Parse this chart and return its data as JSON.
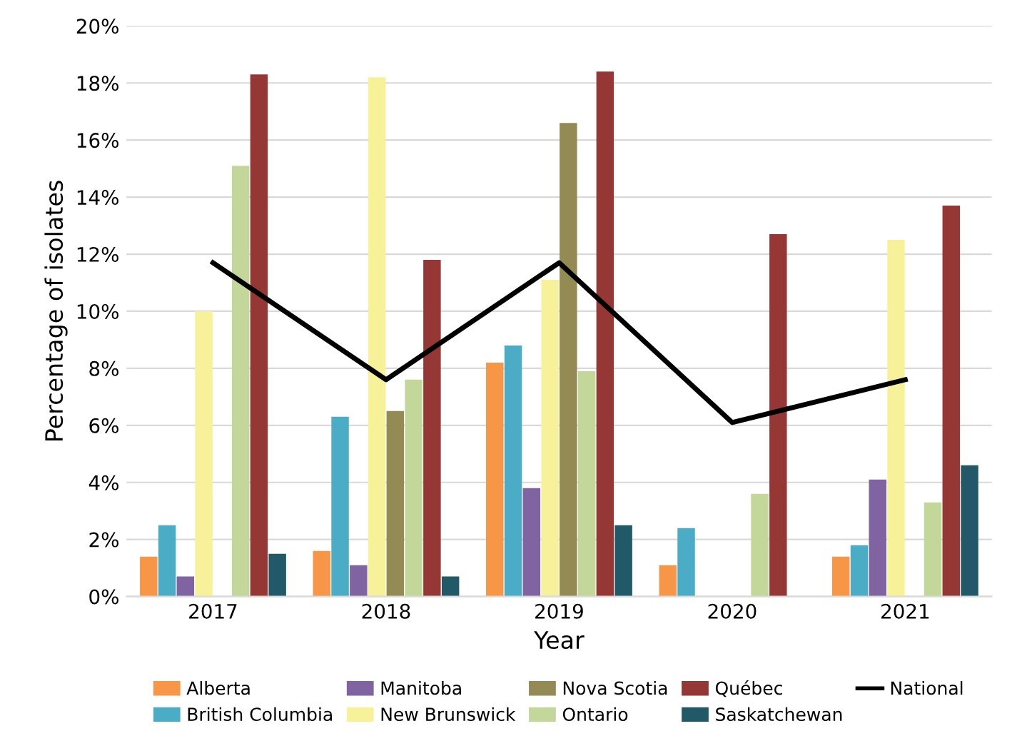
{
  "chart_data": {
    "type": "bar",
    "xlabel": "Year",
    "ylabel": "Percentage of isolates",
    "categories": [
      "2017",
      "2018",
      "2019",
      "2020",
      "2021"
    ],
    "series": [
      {
        "name": "Alberta",
        "color": "#f79646",
        "values": [
          1.4,
          1.6,
          8.2,
          1.1,
          1.4
        ]
      },
      {
        "name": "British Columbia",
        "color": "#4bacc6",
        "values": [
          2.5,
          6.3,
          8.8,
          2.4,
          1.8
        ]
      },
      {
        "name": "Manitoba",
        "color": "#8064a2",
        "values": [
          0.7,
          1.1,
          3.8,
          null,
          4.1
        ]
      },
      {
        "name": "New Brunswick",
        "color": "#f7f19a",
        "values": [
          10.0,
          18.2,
          11.1,
          null,
          12.5
        ]
      },
      {
        "name": "Nova Scotia",
        "color": "#948a54",
        "values": [
          null,
          6.5,
          16.6,
          null,
          null
        ]
      },
      {
        "name": "Ontario",
        "color": "#c4d79b",
        "values": [
          15.1,
          7.6,
          7.9,
          3.6,
          3.3
        ]
      },
      {
        "name": "Québec",
        "color": "#953735",
        "values": [
          18.3,
          11.8,
          18.4,
          12.7,
          13.7
        ]
      },
      {
        "name": "Saskatchewan",
        "color": "#215968",
        "values": [
          1.5,
          0.7,
          2.5,
          null,
          4.6
        ]
      },
      {
        "name": "National",
        "type": "line",
        "color": "#000000",
        "values": [
          11.7,
          7.6,
          11.7,
          6.1,
          7.6
        ]
      }
    ],
    "ylim": [
      0,
      20
    ],
    "yticks": [
      {
        "value": 0,
        "label": "0%"
      },
      {
        "value": 2,
        "label": "2%"
      },
      {
        "value": 4,
        "label": "4%"
      },
      {
        "value": 6,
        "label": "6%"
      },
      {
        "value": 8,
        "label": "8%"
      },
      {
        "value": 10,
        "label": "10%"
      },
      {
        "value": 12,
        "label": "12%"
      },
      {
        "value": 14,
        "label": "14%"
      },
      {
        "value": 16,
        "label": "16%"
      },
      {
        "value": 18,
        "label": "18%"
      },
      {
        "value": 20,
        "label": "20%"
      }
    ],
    "grid": "y",
    "legend": "bottom"
  }
}
